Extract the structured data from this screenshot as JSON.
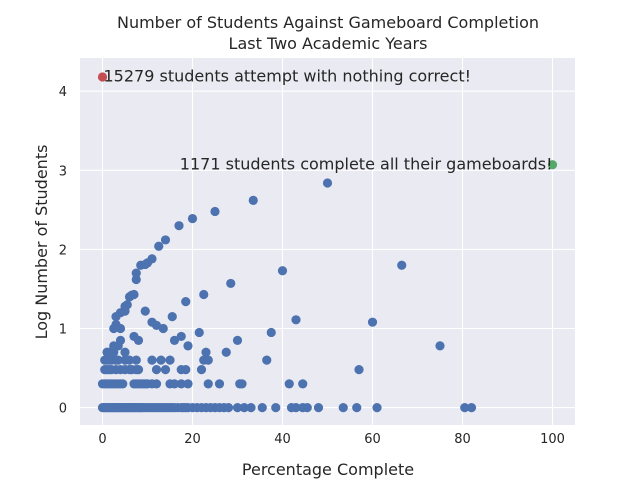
{
  "chart_data": {
    "type": "scatter",
    "title_line1": "Number of Students Against Gameboard Completion",
    "title_line2": "Last Two Academic Years",
    "xlabel": "Percentage Complete",
    "ylabel": "Log Number of Students",
    "xlim": [
      -5,
      105
    ],
    "ylim": [
      -0.22,
      4.42
    ],
    "xticks": [
      0,
      20,
      40,
      60,
      80,
      100
    ],
    "yticks": [
      0,
      1,
      2,
      3,
      4
    ],
    "grid": true,
    "colors": {
      "main": "#4c72b0",
      "zero": "#c44e52",
      "full": "#55a868"
    },
    "annotations": [
      {
        "text": "15279 students attempt with nothing correct!",
        "x": 0,
        "y": 4.18
      },
      {
        "text": "1171 students complete all their gameboards!",
        "x": 100,
        "y": 3.07
      }
    ],
    "highlight_points": [
      {
        "x": 0,
        "y": 4.18,
        "kind": "zero"
      },
      {
        "x": 100,
        "y": 3.07,
        "kind": "full"
      }
    ],
    "points": [
      [
        0.0,
        0
      ],
      [
        0.3,
        0
      ],
      [
        0.6,
        0
      ],
      [
        0.9,
        0
      ],
      [
        1.2,
        0
      ],
      [
        1.5,
        0
      ],
      [
        1.8,
        0
      ],
      [
        2.1,
        0
      ],
      [
        2.4,
        0
      ],
      [
        2.7,
        0
      ],
      [
        3.0,
        0
      ],
      [
        3.3,
        0
      ],
      [
        3.6,
        0
      ],
      [
        3.9,
        0
      ],
      [
        4.2,
        0
      ],
      [
        4.5,
        0
      ],
      [
        4.8,
        0
      ],
      [
        5.1,
        0
      ],
      [
        5.4,
        0
      ],
      [
        5.7,
        0
      ],
      [
        6.0,
        0
      ],
      [
        6.3,
        0
      ],
      [
        6.6,
        0
      ],
      [
        6.9,
        0
      ],
      [
        7.2,
        0
      ],
      [
        7.5,
        0
      ],
      [
        7.8,
        0
      ],
      [
        8.1,
        0
      ],
      [
        8.4,
        0
      ],
      [
        8.7,
        0
      ],
      [
        9.0,
        0
      ],
      [
        9.5,
        0
      ],
      [
        10.0,
        0
      ],
      [
        10.5,
        0
      ],
      [
        11.0,
        0
      ],
      [
        11.5,
        0
      ],
      [
        12.0,
        0
      ],
      [
        12.5,
        0
      ],
      [
        13.0,
        0
      ],
      [
        13.5,
        0
      ],
      [
        14.0,
        0
      ],
      [
        14.5,
        0
      ],
      [
        15.0,
        0
      ],
      [
        15.5,
        0
      ],
      [
        16.0,
        0
      ],
      [
        16.7,
        0
      ],
      [
        17.5,
        0
      ],
      [
        18.0,
        0
      ],
      [
        18.5,
        0
      ],
      [
        19.0,
        0
      ],
      [
        20.0,
        0
      ],
      [
        21.0,
        0
      ],
      [
        22.0,
        0
      ],
      [
        23.0,
        0
      ],
      [
        24.0,
        0
      ],
      [
        25.0,
        0
      ],
      [
        26.0,
        0
      ],
      [
        27.0,
        0
      ],
      [
        28.0,
        0
      ],
      [
        30.0,
        0
      ],
      [
        31.5,
        0
      ],
      [
        33.0,
        0
      ],
      [
        35.5,
        0
      ],
      [
        38.5,
        0
      ],
      [
        42.0,
        0
      ],
      [
        43.0,
        0
      ],
      [
        44.5,
        0
      ],
      [
        45.5,
        0
      ],
      [
        48.0,
        0
      ],
      [
        53.5,
        0
      ],
      [
        56.5,
        0
      ],
      [
        61.0,
        0
      ],
      [
        80.5,
        0
      ],
      [
        82.0,
        0
      ],
      [
        0.0,
        0.3
      ],
      [
        0.5,
        0.3
      ],
      [
        1.0,
        0.3
      ],
      [
        1.5,
        0.3
      ],
      [
        2.0,
        0.3
      ],
      [
        2.5,
        0.3
      ],
      [
        3.0,
        0.3
      ],
      [
        3.5,
        0.3
      ],
      [
        4.0,
        0.3
      ],
      [
        4.5,
        0.3
      ],
      [
        7.0,
        0.3
      ],
      [
        7.5,
        0.3
      ],
      [
        8.0,
        0.3
      ],
      [
        8.5,
        0.3
      ],
      [
        9.0,
        0.3
      ],
      [
        9.5,
        0.3
      ],
      [
        10.0,
        0.3
      ],
      [
        11.0,
        0.3
      ],
      [
        12.0,
        0.3
      ],
      [
        15.0,
        0.3
      ],
      [
        16.0,
        0.3
      ],
      [
        17.5,
        0.3
      ],
      [
        19.0,
        0.3
      ],
      [
        23.5,
        0.3
      ],
      [
        26.0,
        0.3
      ],
      [
        30.5,
        0.3
      ],
      [
        31.0,
        0.3
      ],
      [
        41.5,
        0.3
      ],
      [
        44.5,
        0.3
      ],
      [
        0.5,
        0.48
      ],
      [
        1.0,
        0.48
      ],
      [
        1.5,
        0.48
      ],
      [
        2.0,
        0.48
      ],
      [
        3.0,
        0.48
      ],
      [
        4.0,
        0.48
      ],
      [
        5.0,
        0.48
      ],
      [
        6.0,
        0.48
      ],
      [
        6.5,
        0.48
      ],
      [
        7.5,
        0.48
      ],
      [
        8.0,
        0.48
      ],
      [
        12.0,
        0.48
      ],
      [
        14.0,
        0.48
      ],
      [
        17.5,
        0.48
      ],
      [
        18.5,
        0.48
      ],
      [
        22.0,
        0.48
      ],
      [
        57.0,
        0.48
      ],
      [
        0.5,
        0.6
      ],
      [
        1.0,
        0.6
      ],
      [
        1.5,
        0.6
      ],
      [
        2.0,
        0.6
      ],
      [
        3.0,
        0.6
      ],
      [
        3.5,
        0.6
      ],
      [
        5.0,
        0.6
      ],
      [
        6.0,
        0.6
      ],
      [
        7.5,
        0.6
      ],
      [
        11.0,
        0.6
      ],
      [
        13.0,
        0.6
      ],
      [
        15.0,
        0.6
      ],
      [
        22.5,
        0.6
      ],
      [
        23.5,
        0.6
      ],
      [
        36.5,
        0.6
      ],
      [
        1.0,
        0.7
      ],
      [
        1.5,
        0.7
      ],
      [
        2.5,
        0.7
      ],
      [
        5.0,
        0.7
      ],
      [
        23.0,
        0.7
      ],
      [
        27.5,
        0.7
      ],
      [
        2.5,
        0.78
      ],
      [
        3.5,
        0.78
      ],
      [
        19.0,
        0.78
      ],
      [
        4.0,
        0.85
      ],
      [
        7.0,
        0.9
      ],
      [
        8.0,
        0.85
      ],
      [
        16.0,
        0.85
      ],
      [
        17.5,
        0.9
      ],
      [
        30.0,
        0.85
      ],
      [
        2.5,
        1.0
      ],
      [
        3.0,
        1.05
      ],
      [
        4.0,
        1.0
      ],
      [
        11.0,
        1.08
      ],
      [
        12.0,
        1.04
      ],
      [
        13.5,
        1.0
      ],
      [
        21.5,
        0.95
      ],
      [
        37.5,
        0.95
      ],
      [
        60.0,
        1.08
      ],
      [
        75.0,
        0.78
      ],
      [
        3.0,
        1.15
      ],
      [
        4.0,
        1.2
      ],
      [
        5.0,
        1.22
      ],
      [
        9.5,
        1.22
      ],
      [
        15.5,
        1.15
      ],
      [
        43.0,
        1.11
      ],
      [
        5.5,
        1.3
      ],
      [
        5.0,
        1.28
      ],
      [
        6.0,
        1.4
      ],
      [
        6.5,
        1.42
      ],
      [
        7.0,
        1.43
      ],
      [
        18.5,
        1.34
      ],
      [
        22.5,
        1.43
      ],
      [
        28.5,
        1.57
      ],
      [
        7.5,
        1.62
      ],
      [
        7.5,
        1.7
      ],
      [
        40.0,
        1.73
      ],
      [
        66.5,
        1.8
      ],
      [
        8.5,
        1.8
      ],
      [
        9.5,
        1.81
      ],
      [
        10.0,
        1.83
      ],
      [
        11.0,
        1.88
      ],
      [
        12.5,
        2.04
      ],
      [
        14.0,
        2.12
      ],
      [
        17.0,
        2.3
      ],
      [
        20.0,
        2.39
      ],
      [
        25.0,
        2.48
      ],
      [
        33.5,
        2.62
      ],
      [
        50.0,
        2.84
      ]
    ]
  }
}
